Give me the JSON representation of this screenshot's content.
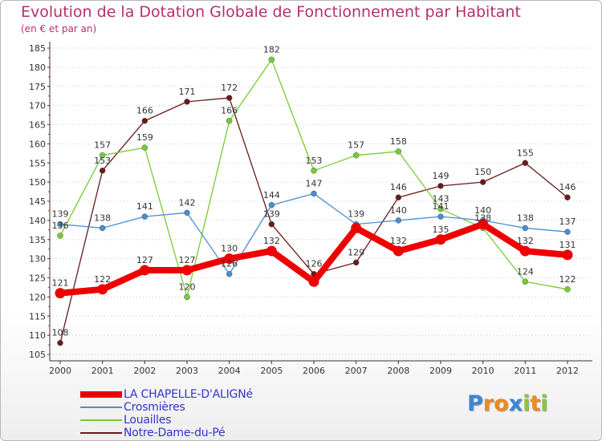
{
  "chart_data": {
    "type": "line",
    "title": "Evolution de la Dotation Globale de Fonctionnement par Habitant",
    "subtitle": "(en € et par an)",
    "x": [
      "2000",
      "2001",
      "2002",
      "2003",
      "2004",
      "2005",
      "2006",
      "2007",
      "2008",
      "2009",
      "2010",
      "2011",
      "2012"
    ],
    "ylim": [
      105,
      185
    ],
    "yticks": [
      105,
      110,
      115,
      120,
      125,
      130,
      135,
      140,
      145,
      150,
      155,
      160,
      165,
      170,
      175,
      180,
      185
    ],
    "grid": "horizontal dotted",
    "legend_position": "bottom-left",
    "series": [
      {
        "name": "LA CHAPELLE-D'ALIGNé",
        "color": "#ee0000",
        "values": [
          121,
          122,
          127,
          127,
          130,
          132,
          124,
          138,
          132,
          135,
          139,
          132,
          131
        ],
        "labels": [
          "121",
          "122",
          "127",
          "127",
          "130",
          "132",
          "",
          "",
          "132",
          "135",
          "",
          "132",
          "131"
        ]
      },
      {
        "name": "Crosmières",
        "color": "#4a8ed0",
        "values": [
          139,
          138,
          141,
          142,
          126,
          144,
          147,
          139,
          140,
          141,
          140,
          138,
          137
        ],
        "labels": [
          "139",
          "138",
          "141",
          "142",
          "126",
          "144",
          "147",
          "139",
          "140",
          "141",
          "140",
          "138",
          "137"
        ]
      },
      {
        "name": "Louailles",
        "color": "#77cc33",
        "values": [
          136,
          157,
          159,
          120,
          166,
          182,
          153,
          157,
          158,
          143,
          138,
          124,
          122
        ],
        "labels": [
          "136",
          "157",
          "159",
          "120",
          "166",
          "182",
          "153",
          "157",
          "158",
          "143",
          "138",
          "124",
          "122"
        ]
      },
      {
        "name": "Notre-Dame-du-Pé",
        "color": "#6b1a1a",
        "values": [
          108,
          153,
          166,
          171,
          172,
          139,
          126,
          129,
          146,
          149,
          150,
          155,
          146
        ],
        "labels": [
          "108",
          "153",
          "166",
          "171",
          "172",
          "139",
          "126",
          "129",
          "146",
          "149",
          "150",
          "155",
          "146"
        ]
      }
    ]
  },
  "logo": {
    "letters": [
      "P",
      "r",
      "o",
      "x",
      "i",
      "t",
      "i"
    ],
    "colors": [
      "#3a86d6",
      "#f08a1c",
      "#f08a1c",
      "#3a86d6",
      "#8bc43a",
      "#f08a1c",
      "#8bc43a"
    ]
  }
}
